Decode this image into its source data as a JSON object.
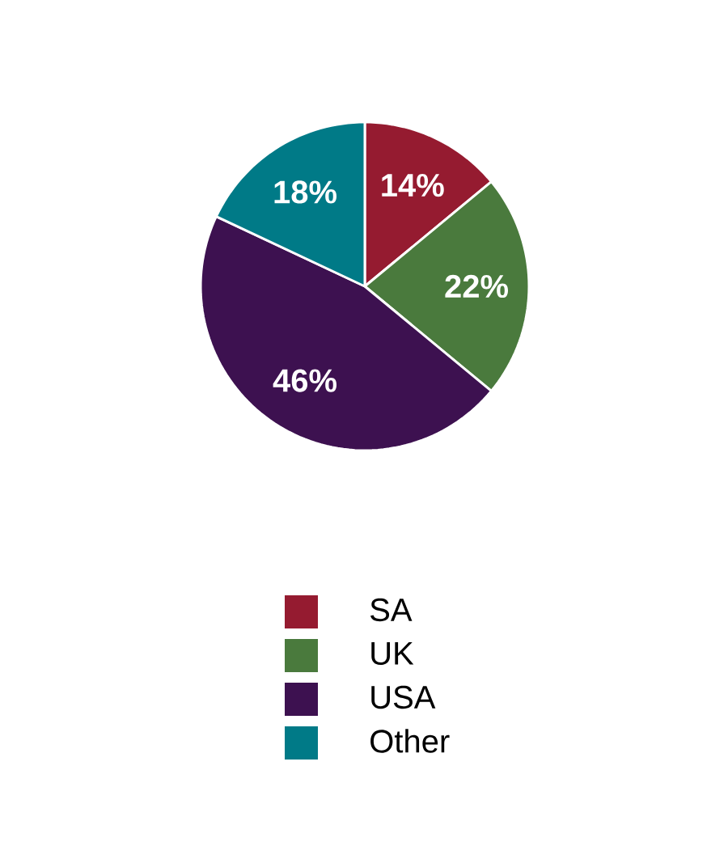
{
  "chart_data": {
    "type": "pie",
    "categories": [
      "SA",
      "UK",
      "USA",
      "Other"
    ],
    "values": [
      14,
      22,
      46,
      18
    ],
    "value_labels": [
      "14%",
      "22%",
      "46%",
      "18%"
    ],
    "colors": [
      "#951b30",
      "#4a7a3d",
      "#3d1150",
      "#007a87"
    ],
    "legend": "bottom"
  }
}
